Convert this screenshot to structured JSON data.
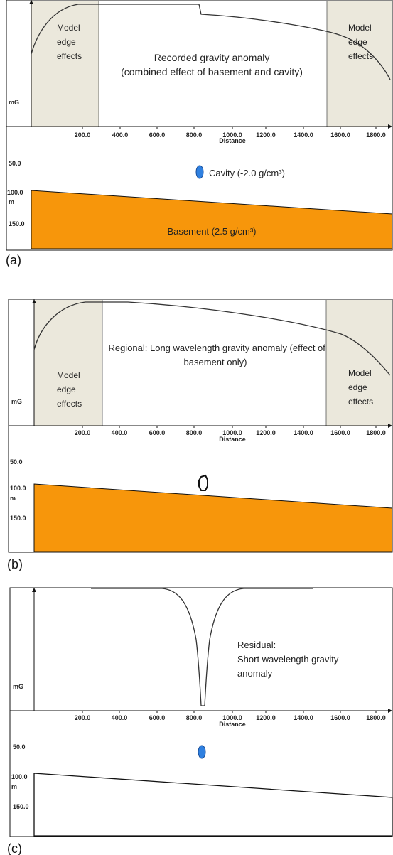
{
  "colors": {
    "basement": "#f7960b",
    "cavity": "#2f80e0",
    "edge_zone": "#ebe8dc",
    "curve": "#333333",
    "axis": "#111111"
  },
  "axis_labels": {
    "gravity_unit": "mG",
    "depth_unit": "m",
    "distance": "Distance"
  },
  "distance_ticks": [
    "200.0",
    "400.0",
    "600.0",
    "800.0",
    "1000.0",
    "1200.0",
    "1400.0",
    "1600.0",
    "1800.0"
  ],
  "depth_ticks": [
    "50.0",
    "100.0",
    "150.0"
  ],
  "panels": [
    {
      "label": "(a)",
      "edge_left_text": [
        "Model",
        "edge",
        "effects"
      ],
      "edge_right_text": [
        "Model",
        "edge",
        "effects"
      ],
      "center_text": [
        "Recorded gravity anomaly",
        "(combined effect of basement and cavity)"
      ],
      "cavity_text": "Cavity (-2.0 g/cm³)",
      "basement_text": "Basement (2.5 g/cm³)"
    },
    {
      "label": "(b)",
      "edge_left_text": [
        "Model",
        "edge",
        "effects"
      ],
      "edge_right_text": [
        "Model",
        "edge",
        "effects"
      ],
      "center_text": [
        "Regional: Long wavelength gravity anomaly (effect of",
        "basement only)"
      ]
    },
    {
      "label": "(c)",
      "residual_text": [
        "Residual:",
        "Short wavelength gravity",
        "anomaly"
      ]
    }
  ]
}
